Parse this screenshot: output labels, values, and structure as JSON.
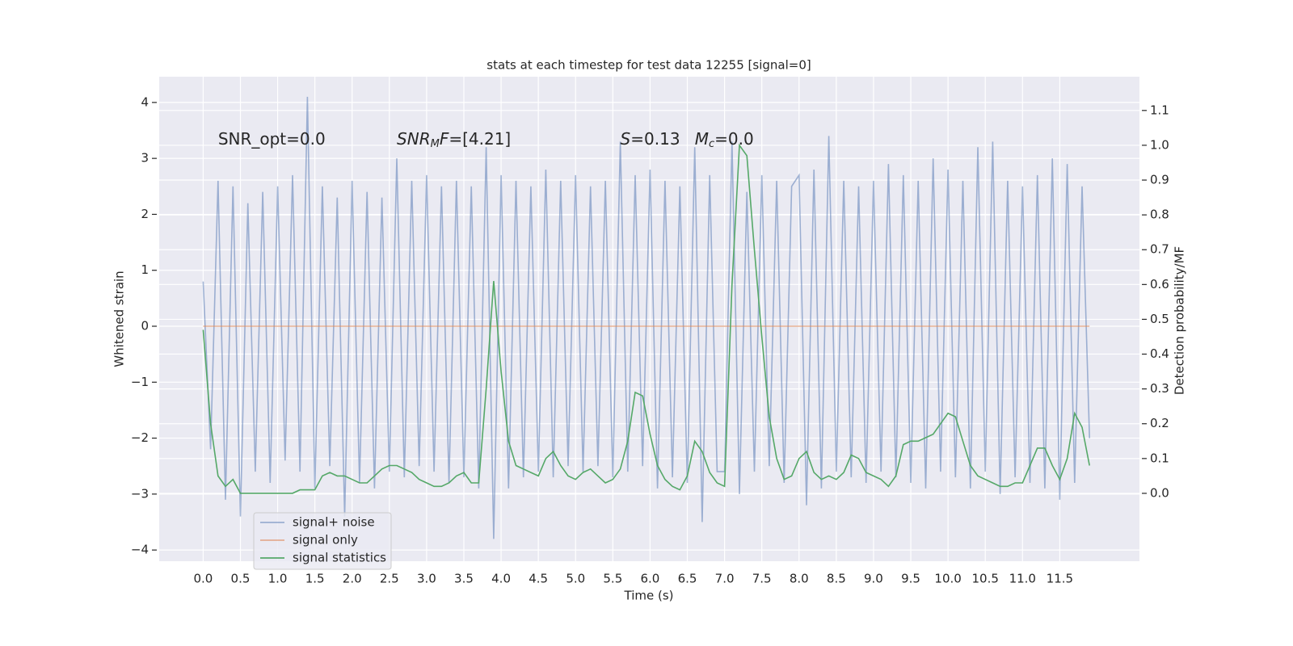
{
  "chart_data": {
    "type": "line",
    "title": "stats at each timestep for test data 12255 [signal=0]",
    "xlabel": "Time (s)",
    "ylabel": "Whitened strain",
    "y2label": "Detection probability/MF",
    "annotations": [
      {
        "x": 0.2,
        "parts": [
          {
            "text": "SNR_opt=0.0",
            "style": "normal"
          }
        ]
      },
      {
        "x": 2.6,
        "parts": [
          {
            "text": "SNR",
            "style": "italic"
          },
          {
            "text": "M",
            "style": "sub"
          },
          {
            "text": "F",
            "style": "italic"
          },
          {
            "text": "=[4.21]",
            "style": "normal"
          }
        ]
      },
      {
        "x": 5.6,
        "parts": [
          {
            "text": "S",
            "style": "italic"
          },
          {
            "text": "=0.13",
            "style": "normal"
          }
        ]
      },
      {
        "x": 6.6,
        "parts": [
          {
            "text": "M",
            "style": "italic"
          },
          {
            "text": "c",
            "style": "sub"
          },
          {
            "text": "=0.0",
            "style": "normal"
          }
        ]
      }
    ],
    "x": [
      0.0,
      0.1,
      0.2,
      0.3,
      0.4,
      0.5,
      0.6,
      0.7,
      0.8,
      0.9,
      1.0,
      1.1,
      1.2,
      1.3,
      1.4,
      1.5,
      1.6,
      1.7,
      1.8,
      1.9,
      2.0,
      2.1,
      2.2,
      2.3,
      2.4,
      2.5,
      2.6,
      2.7,
      2.8,
      2.9,
      3.0,
      3.1,
      3.2,
      3.3,
      3.4,
      3.5,
      3.6,
      3.7,
      3.8,
      3.9,
      4.0,
      4.1,
      4.2,
      4.3,
      4.4,
      4.5,
      4.6,
      4.7,
      4.8,
      4.9,
      5.0,
      5.1,
      5.2,
      5.3,
      5.4,
      5.5,
      5.6,
      5.7,
      5.8,
      5.9,
      6.0,
      6.1,
      6.2,
      6.3,
      6.4,
      6.5,
      6.6,
      6.7,
      6.8,
      6.9,
      7.0,
      7.1,
      7.2,
      7.3,
      7.4,
      7.5,
      7.6,
      7.7,
      7.8,
      7.9,
      8.0,
      8.1,
      8.2,
      8.3,
      8.4,
      8.5,
      8.6,
      8.7,
      8.8,
      8.9,
      9.0,
      9.1,
      9.2,
      9.3,
      9.4,
      9.5,
      9.6,
      9.7,
      9.8,
      9.9,
      10.0,
      10.1,
      10.2,
      10.3,
      10.4,
      10.5,
      10.6,
      10.7,
      10.8,
      10.9,
      11.0,
      11.1,
      11.2,
      11.3,
      11.4,
      11.5,
      11.6,
      11.7,
      11.8,
      11.9
    ],
    "series": [
      {
        "name": "signal+ noise",
        "color": "#4c72b0",
        "opacity": 0.5,
        "axis": "y",
        "values": [
          0.8,
          -2.2,
          2.6,
          -3.1,
          2.5,
          -3.4,
          2.2,
          -2.6,
          2.4,
          -2.8,
          2.5,
          -2.4,
          2.7,
          -2.6,
          4.1,
          -2.9,
          2.5,
          -2.5,
          2.3,
          -3.4,
          2.6,
          -2.8,
          2.4,
          -2.9,
          2.3,
          -2.6,
          3.0,
          -2.7,
          2.6,
          -2.5,
          2.7,
          -2.6,
          2.5,
          -2.8,
          2.6,
          -2.7,
          2.5,
          -2.9,
          3.2,
          -3.8,
          2.7,
          -2.9,
          2.6,
          -2.7,
          2.5,
          -2.6,
          2.8,
          -2.7,
          2.6,
          -2.5,
          2.7,
          -2.6,
          2.5,
          -2.5,
          2.6,
          -2.7,
          3.3,
          -2.6,
          2.7,
          -2.5,
          2.8,
          -2.9,
          2.6,
          -2.7,
          2.5,
          -2.8,
          3.2,
          -3.5,
          2.7,
          -2.6,
          -2.6,
          3.3,
          -3.0,
          2.4,
          -2.6,
          2.7,
          -2.5,
          2.6,
          -2.8,
          2.5,
          2.7,
          -3.2,
          2.8,
          -2.9,
          3.4,
          -2.6,
          2.6,
          -2.7,
          2.5,
          -2.8,
          2.6,
          -2.6,
          2.9,
          -2.7,
          2.7,
          -2.8,
          2.6,
          -2.9,
          3.0,
          -2.6,
          2.8,
          -2.7,
          2.6,
          -2.9,
          3.2,
          -2.6,
          3.3,
          -3.0,
          2.6,
          -2.7,
          2.5,
          -2.8,
          2.7,
          -2.9,
          3.0,
          -3.1,
          2.9,
          -2.8,
          2.5,
          -2.0
        ]
      },
      {
        "name": "signal only",
        "color": "#dd8452",
        "opacity": 0.6,
        "axis": "y",
        "values": [
          0,
          0,
          0,
          0,
          0,
          0,
          0,
          0,
          0,
          0,
          0,
          0,
          0,
          0,
          0,
          0,
          0,
          0,
          0,
          0,
          0,
          0,
          0,
          0,
          0,
          0,
          0,
          0,
          0,
          0,
          0,
          0,
          0,
          0,
          0,
          0,
          0,
          0,
          0,
          0,
          0,
          0,
          0,
          0,
          0,
          0,
          0,
          0,
          0,
          0,
          0,
          0,
          0,
          0,
          0,
          0,
          0,
          0,
          0,
          0,
          0,
          0,
          0,
          0,
          0,
          0,
          0,
          0,
          0,
          0,
          0,
          0,
          0,
          0,
          0,
          0,
          0,
          0,
          0,
          0,
          0,
          0,
          0,
          0,
          0,
          0,
          0,
          0,
          0,
          0,
          0,
          0,
          0,
          0,
          0,
          0,
          0,
          0,
          0,
          0,
          0,
          0,
          0,
          0,
          0,
          0,
          0,
          0,
          0,
          0,
          0,
          0,
          0,
          0,
          0,
          0,
          0,
          0,
          0,
          0
        ]
      },
      {
        "name": "signal statistics",
        "color": "#55a868",
        "opacity": 1,
        "axis": "y2",
        "values": [
          0.47,
          0.2,
          0.05,
          0.02,
          0.04,
          0.0,
          0.0,
          0.0,
          0.0,
          0.0,
          0.0,
          0.0,
          0.0,
          0.01,
          0.01,
          0.01,
          0.05,
          0.06,
          0.05,
          0.05,
          0.04,
          0.03,
          0.03,
          0.05,
          0.07,
          0.08,
          0.08,
          0.07,
          0.06,
          0.04,
          0.03,
          0.02,
          0.02,
          0.03,
          0.05,
          0.06,
          0.03,
          0.03,
          0.3,
          0.61,
          0.35,
          0.15,
          0.08,
          0.07,
          0.06,
          0.05,
          0.1,
          0.12,
          0.08,
          0.05,
          0.04,
          0.06,
          0.07,
          0.05,
          0.03,
          0.04,
          0.07,
          0.15,
          0.29,
          0.28,
          0.17,
          0.08,
          0.04,
          0.02,
          0.01,
          0.05,
          0.15,
          0.12,
          0.06,
          0.03,
          0.02,
          0.6,
          1.0,
          0.97,
          0.7,
          0.45,
          0.22,
          0.1,
          0.04,
          0.05,
          0.1,
          0.12,
          0.06,
          0.04,
          0.05,
          0.04,
          0.06,
          0.11,
          0.1,
          0.06,
          0.05,
          0.04,
          0.02,
          0.05,
          0.14,
          0.15,
          0.15,
          0.16,
          0.17,
          0.2,
          0.23,
          0.22,
          0.15,
          0.08,
          0.05,
          0.04,
          0.03,
          0.02,
          0.02,
          0.03,
          0.03,
          0.08,
          0.13,
          0.13,
          0.08,
          0.04,
          0.1,
          0.23,
          0.19,
          0.08
        ]
      }
    ],
    "xlim": [
      -0.59,
      12.57
    ],
    "ylim": [
      -4.2,
      4.46
    ],
    "y2lim": [
      -0.195,
      1.197
    ],
    "xticks": [
      {
        "value": 0,
        "label": "0.0"
      },
      {
        "value": 0.5,
        "label": "0.5"
      },
      {
        "value": 1,
        "label": "1.0"
      },
      {
        "value": 1.5,
        "label": "1.5"
      },
      {
        "value": 2,
        "label": "2.0"
      },
      {
        "value": 2.5,
        "label": "2.5"
      },
      {
        "value": 3,
        "label": "3.0"
      },
      {
        "value": 3.5,
        "label": "3.5"
      },
      {
        "value": 4,
        "label": "4.0"
      },
      {
        "value": 4.5,
        "label": "4.5"
      },
      {
        "value": 5,
        "label": "5.0"
      },
      {
        "value": 5.5,
        "label": "5.5"
      },
      {
        "value": 6,
        "label": "6.0"
      },
      {
        "value": 6.5,
        "label": "6.5"
      },
      {
        "value": 7,
        "label": "7.0"
      },
      {
        "value": 7.5,
        "label": "7.5"
      },
      {
        "value": 8,
        "label": "8.0"
      },
      {
        "value": 8.5,
        "label": "8.5"
      },
      {
        "value": 9,
        "label": "9.0"
      },
      {
        "value": 9.5,
        "label": "9.5"
      },
      {
        "value": 10,
        "label": "10.0"
      },
      {
        "value": 10.5,
        "label": "10.5"
      },
      {
        "value": 11,
        "label": "11.0"
      },
      {
        "value": 11.5,
        "label": "11.5"
      }
    ],
    "yticks": [
      {
        "value": -4,
        "label": "−4"
      },
      {
        "value": -3,
        "label": "−3"
      },
      {
        "value": -2,
        "label": "−2"
      },
      {
        "value": -1,
        "label": "−1"
      },
      0,
      1,
      2,
      3,
      4
    ],
    "y2ticks": [
      {
        "value": 0,
        "label": "0.0"
      },
      {
        "value": 0.1,
        "label": "0.1"
      },
      {
        "value": 0.2,
        "label": "0.2"
      },
      {
        "value": 0.3,
        "label": "0.3"
      },
      {
        "value": 0.4,
        "label": "0.4"
      },
      {
        "value": 0.5,
        "label": "0.5"
      },
      {
        "value": 0.6,
        "label": "0.6"
      },
      {
        "value": 0.7,
        "label": "0.7"
      },
      {
        "value": 0.8,
        "label": "0.8"
      },
      {
        "value": 0.9,
        "label": "0.9"
      },
      {
        "value": 1,
        "label": "1.0"
      },
      {
        "value": 1.1,
        "label": "1.1"
      }
    ],
    "grid": true,
    "legend": "lower left"
  }
}
